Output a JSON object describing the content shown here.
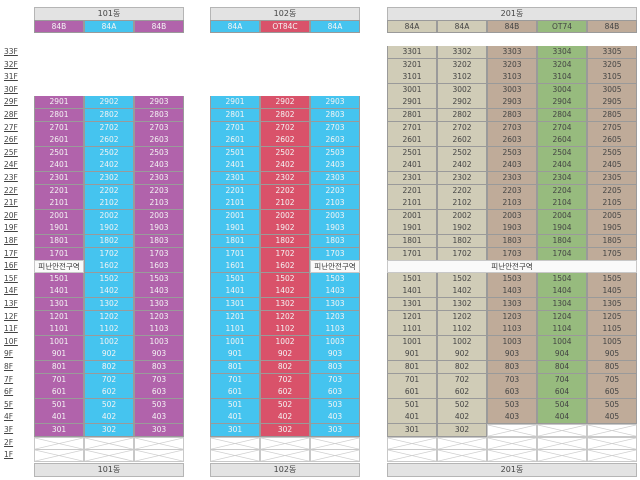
{
  "floors": [
    "33F",
    "32F",
    "31F",
    "30F",
    "29F",
    "28F",
    "27F",
    "26F",
    "25F",
    "24F",
    "23F",
    "22F",
    "21F",
    "20F",
    "19F",
    "18F",
    "17F",
    "16F",
    "15F",
    "14F",
    "13F",
    "12F",
    "11F",
    "10F",
    "9F",
    "8F",
    "7F",
    "6F",
    "5F",
    "4F",
    "3F",
    "2F",
    "1F"
  ],
  "refuge_label": "피난안전구역",
  "colors": {
    "84B_101": "#b163ab",
    "84A": "#45c4ef",
    "OT84C": "#d9526a",
    "84A_201": "#d0ccb7",
    "84B_201": "#bfab99",
    "OT74": "#97bb7e"
  },
  "buildings": [
    {
      "name": "101동",
      "footer": "101동",
      "types": [
        "84B",
        "84A",
        "84B"
      ],
      "colorKeys": [
        "84B_101",
        "84A",
        "84B_101"
      ],
      "dark": false,
      "rows": [
        null,
        null,
        null,
        null,
        [
          "2901",
          "2902",
          "2903"
        ],
        [
          "2801",
          "2802",
          "2803"
        ],
        [
          "2701",
          "2702",
          "2703"
        ],
        [
          "2601",
          "2602",
          "2603"
        ],
        [
          "2501",
          "2502",
          "2503"
        ],
        [
          "2401",
          "2402",
          "2403"
        ],
        [
          "2301",
          "2302",
          "2303"
        ],
        [
          "2201",
          "2202",
          "2203"
        ],
        [
          "2101",
          "2102",
          "2103"
        ],
        [
          "2001",
          "2002",
          "2003"
        ],
        [
          "1901",
          "1902",
          "1903"
        ],
        [
          "1801",
          "1802",
          "1803"
        ],
        [
          "1701",
          "1702",
          "1703"
        ],
        [
          "피난안전구역",
          "1602",
          "1603"
        ],
        [
          "1501",
          "1502",
          "1503"
        ],
        [
          "1401",
          "1402",
          "1403"
        ],
        [
          "1301",
          "1302",
          "1303"
        ],
        [
          "1201",
          "1202",
          "1203"
        ],
        [
          "1101",
          "1102",
          "1103"
        ],
        [
          "1001",
          "1002",
          "1003"
        ],
        [
          "901",
          "902",
          "903"
        ],
        [
          "801",
          "802",
          "803"
        ],
        [
          "701",
          "702",
          "703"
        ],
        [
          "601",
          "602",
          "603"
        ],
        [
          "501",
          "502",
          "503"
        ],
        [
          "401",
          "402",
          "403"
        ],
        [
          "301",
          "302",
          "303"
        ],
        [
          "x",
          "x",
          "x"
        ],
        [
          "x",
          "x",
          "x"
        ]
      ]
    },
    {
      "name": "102동",
      "footer": "102동",
      "types": [
        "84A",
        "OT84C",
        "84A"
      ],
      "colorKeys": [
        "84A",
        "OT84C",
        "84A"
      ],
      "dark": false,
      "rows": [
        null,
        null,
        null,
        null,
        [
          "2901",
          "2902",
          "2903"
        ],
        [
          "2801",
          "2802",
          "2803"
        ],
        [
          "2701",
          "2702",
          "2703"
        ],
        [
          "2601",
          "2602",
          "2603"
        ],
        [
          "2501",
          "2502",
          "2503"
        ],
        [
          "2401",
          "2402",
          "2403"
        ],
        [
          "2301",
          "2302",
          "2303"
        ],
        [
          "2201",
          "2202",
          "2203"
        ],
        [
          "2101",
          "2102",
          "2103"
        ],
        [
          "2001",
          "2002",
          "2003"
        ],
        [
          "1901",
          "1902",
          "1903"
        ],
        [
          "1801",
          "1802",
          "1803"
        ],
        [
          "1701",
          "1702",
          "1703"
        ],
        [
          "1601",
          "1602",
          "피난안전구역"
        ],
        [
          "1501",
          "1502",
          "1503"
        ],
        [
          "1401",
          "1402",
          "1403"
        ],
        [
          "1301",
          "1302",
          "1303"
        ],
        [
          "1201",
          "1202",
          "1203"
        ],
        [
          "1101",
          "1102",
          "1103"
        ],
        [
          "1001",
          "1002",
          "1003"
        ],
        [
          "901",
          "902",
          "903"
        ],
        [
          "801",
          "802",
          "803"
        ],
        [
          "701",
          "702",
          "703"
        ],
        [
          "601",
          "602",
          "603"
        ],
        [
          "501",
          "502",
          "503"
        ],
        [
          "401",
          "402",
          "403"
        ],
        [
          "301",
          "302",
          "303"
        ],
        [
          "x",
          "x",
          "x"
        ],
        [
          "x",
          "x",
          "x"
        ]
      ]
    },
    {
      "name": "201동",
      "footer": "201동",
      "types": [
        "84A",
        "84A",
        "84B",
        "OT74",
        "84B"
      ],
      "colorKeys": [
        "84A_201",
        "84A_201",
        "84B_201",
        "OT74",
        "84B_201"
      ],
      "dark": true,
      "rows": [
        [
          "3301",
          "3302",
          "3303",
          "3304",
          "3305"
        ],
        [
          "3201",
          "3202",
          "3203",
          "3204",
          "3205"
        ],
        [
          "3101",
          "3102",
          "3103",
          "3104",
          "3105"
        ],
        [
          "3001",
          "3002",
          "3003",
          "3004",
          "3005"
        ],
        [
          "2901",
          "2902",
          "2903",
          "2904",
          "2905"
        ],
        [
          "2801",
          "2802",
          "2803",
          "2804",
          "2805"
        ],
        [
          "2701",
          "2702",
          "2703",
          "2704",
          "2705"
        ],
        [
          "2601",
          "2602",
          "2603",
          "2604",
          "2605"
        ],
        [
          "2501",
          "2502",
          "2503",
          "2504",
          "2505"
        ],
        [
          "2401",
          "2402",
          "2403",
          "2404",
          "2405"
        ],
        [
          "2301",
          "2302",
          "2303",
          "2304",
          "2305"
        ],
        [
          "2201",
          "2202",
          "2203",
          "2204",
          "2205"
        ],
        [
          "2101",
          "2102",
          "2103",
          "2104",
          "2105"
        ],
        [
          "2001",
          "2002",
          "2003",
          "2004",
          "2005"
        ],
        [
          "1901",
          "1902",
          "1903",
          "1904",
          "1905"
        ],
        [
          "1801",
          "1802",
          "1803",
          "1804",
          "1805"
        ],
        [
          "1701",
          "1702",
          "1703",
          "1704",
          "1705"
        ],
        "피난안전구역",
        [
          "1501",
          "1502",
          "1503",
          "1504",
          "1505"
        ],
        [
          "1401",
          "1402",
          "1403",
          "1404",
          "1405"
        ],
        [
          "1301",
          "1302",
          "1303",
          "1304",
          "1305"
        ],
        [
          "1201",
          "1202",
          "1203",
          "1204",
          "1205"
        ],
        [
          "1101",
          "1102",
          "1103",
          "1104",
          "1105"
        ],
        [
          "1001",
          "1002",
          "1003",
          "1004",
          "1005"
        ],
        [
          "901",
          "902",
          "903",
          "904",
          "905"
        ],
        [
          "801",
          "802",
          "803",
          "804",
          "805"
        ],
        [
          "701",
          "702",
          "703",
          "704",
          "705"
        ],
        [
          "601",
          "602",
          "603",
          "604",
          "605"
        ],
        [
          "501",
          "502",
          "503",
          "504",
          "505"
        ],
        [
          "401",
          "402",
          "403",
          "404",
          "405"
        ],
        [
          "301",
          "302",
          "x",
          "x",
          "x"
        ],
        [
          "x",
          "x",
          "x",
          "x",
          "x"
        ],
        [
          "x",
          "x",
          "x",
          "x",
          "x"
        ]
      ]
    }
  ]
}
